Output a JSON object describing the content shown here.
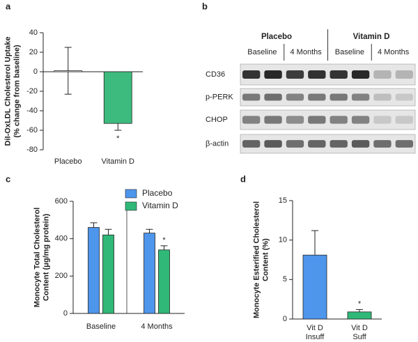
{
  "chart_data": [
    {
      "type": "bar",
      "label": "a",
      "ylabel": [
        "DiI-OxLDL Cholesterol Uptake",
        "(% change from baseline)"
      ],
      "categories": [
        [
          "Placebo"
        ],
        [
          "Vitamin D"
        ]
      ],
      "values": [
        1,
        -53
      ],
      "errors": [
        24,
        7
      ],
      "colors": [
        "#ffffff",
        "#3dbb7e"
      ],
      "ylim": [
        -80,
        40
      ],
      "yticks": [
        -80,
        -60,
        -40,
        -20,
        0,
        20,
        40
      ],
      "annotations": [
        {
          "text": "*",
          "category": "Vitamin D"
        }
      ]
    },
    {
      "type": "bar",
      "label": "c",
      "ylabel": [
        "Monocyte Total Cholesterol",
        "Content (μg/mg protein)"
      ],
      "categories": [
        [
          "Baseline"
        ],
        [
          "4 Months"
        ]
      ],
      "series": [
        {
          "name": "Placebo",
          "color": "#4e95ec",
          "values": [
            460,
            430
          ],
          "errors": [
            25,
            20
          ]
        },
        {
          "name": "Vitamin D",
          "color": "#2fb877",
          "values": [
            420,
            340
          ],
          "errors": [
            30,
            22
          ]
        }
      ],
      "ylim": [
        0,
        600
      ],
      "yticks": [
        0,
        200,
        400,
        600
      ],
      "annotations": [
        {
          "text": "*",
          "category": "4 Months",
          "series": "Vitamin D"
        }
      ]
    },
    {
      "type": "bar",
      "label": "d",
      "ylabel": [
        "Monocyte Esterified Cholesterol",
        "Content (%)"
      ],
      "categories": [
        [
          "Vit D",
          "Insuff"
        ],
        [
          "Vit D",
          "Suff"
        ]
      ],
      "values": [
        8.1,
        0.9
      ],
      "errors": [
        3.1,
        0.3
      ],
      "colors": [
        "#4e95ec",
        "#2fb877"
      ],
      "ylim": [
        0,
        15
      ],
      "yticks": [
        0,
        5,
        10,
        15
      ],
      "annotations": [
        {
          "text": "*",
          "category": "Vit D Suff"
        }
      ]
    }
  ],
  "blot": {
    "label": "b",
    "groups": [
      "Placebo",
      "Vitamin D"
    ],
    "timepoints": [
      "Baseline",
      "4 Months",
      "Baseline",
      "4 Months"
    ],
    "rows": [
      "CD36",
      "p-PERK",
      "CHOP",
      "β-actin"
    ]
  }
}
